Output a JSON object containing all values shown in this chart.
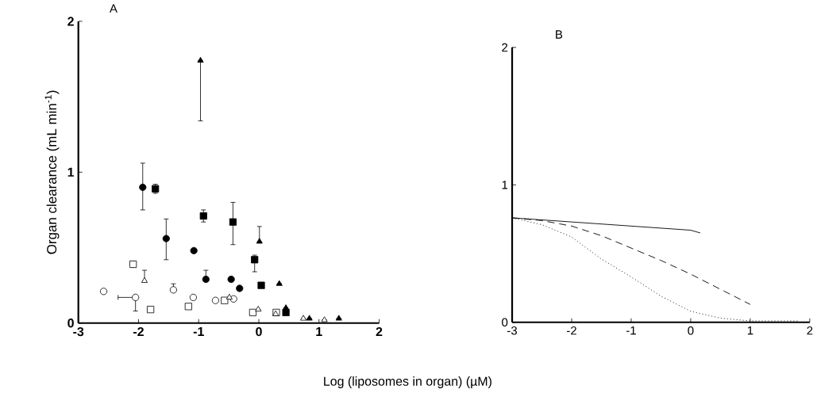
{
  "chart_data": [
    {
      "type": "scatter",
      "title": "A",
      "ylabel": "Organ clearance (mL min$^{-1}$)",
      "xlabel": "Log (liposomes in organ) (µM)",
      "xlim": [
        -3,
        2
      ],
      "ylim": [
        0,
        2
      ],
      "xticks": [
        -3,
        -2,
        -1,
        0,
        1,
        2
      ],
      "yticks": [
        0,
        1,
        2
      ],
      "series": [
        {
          "color": "#000000",
          "marker": "circle",
          "x": [
            -1.93,
            -1.54,
            -1.08,
            -0.88,
            -0.46,
            -0.32
          ],
          "values": [
            0.9,
            0.56,
            0.48,
            0.29,
            0.29,
            0.23
          ],
          "errors": [
            [
              0.75,
              1.06
            ],
            [
              0.42,
              0.69
            ],
            null,
            [
              0.29,
              0.35
            ],
            null,
            null
          ]
        },
        {
          "color": "#000000",
          "marker": "square",
          "x": [
            -1.72,
            -0.92,
            -0.43,
            -0.07,
            0.04,
            0.45
          ],
          "values": [
            0.89,
            0.71,
            0.67,
            0.42,
            0.25,
            0.07
          ],
          "errors": [
            0.03,
            0.04,
            [
              0.52,
              0.8
            ],
            [
              0.34,
              0.45
            ],
            null,
            null
          ]
        },
        {
          "color": "#000000",
          "marker": "triangle",
          "x": [
            -0.97,
            0.01,
            0.34,
            0.45,
            0.84,
            1.33
          ],
          "values": [
            1.74,
            0.54,
            0.26,
            0.1,
            0.03,
            0.03
          ],
          "errors": [
            [
              1.34,
              1.74
            ],
            [
              0.54,
              0.64
            ],
            null,
            null,
            null,
            null
          ]
        },
        {
          "color": "#ffffff",
          "marker": "circle",
          "x": [
            -2.58,
            -2.05,
            -1.42,
            -1.09,
            -0.72,
            -0.42
          ],
          "values": [
            0.21,
            0.17,
            0.22,
            0.17,
            0.15,
            0.16
          ],
          "errors": [
            null,
            [
              0.08,
              0.17
            ],
            [
              0.22,
              0.26
            ],
            null,
            null,
            null
          ],
          "xerrors": [
            null,
            [
              -2.34,
              -2.05
            ],
            null,
            null,
            null,
            null
          ]
        },
        {
          "color": "#ffffff",
          "marker": "square",
          "x": [
            -2.09,
            -1.8,
            -1.17,
            -0.57,
            -0.1,
            0.29
          ],
          "values": [
            0.39,
            0.09,
            0.11,
            0.15,
            0.07,
            0.07
          ],
          "errors": [
            0.02,
            null,
            null,
            null,
            null,
            null
          ]
        },
        {
          "color": "#ffffff",
          "marker": "triangle",
          "x": [
            -1.9,
            -0.49,
            -0.01,
            0.28,
            0.74,
            1.09
          ],
          "values": [
            0.28,
            0.17,
            0.09,
            0.06,
            0.03,
            0.02
          ],
          "errors": [
            [
              0.28,
              0.35
            ],
            null,
            null,
            null,
            null,
            null
          ]
        }
      ]
    },
    {
      "type": "line",
      "title": "B",
      "xlim": [
        -3,
        2
      ],
      "ylim": [
        0,
        2
      ],
      "xticks": [
        -3,
        -2,
        -1,
        0,
        1,
        2
      ],
      "yticks": [
        0,
        1,
        2
      ],
      "series": [
        {
          "color": "#000000",
          "line_style": "solid",
          "marker": "none",
          "x": [
            -3,
            -2,
            -1,
            0,
            0.16
          ],
          "values": [
            0.76,
            0.73,
            0.7,
            0.67,
            0.65
          ]
        },
        {
          "color": "#000000",
          "line_style": "dashed",
          "marker": "none",
          "x": [
            -3,
            -2.5,
            -2,
            -1.5,
            -1,
            -0.5,
            0,
            0.5,
            1
          ],
          "values": [
            0.76,
            0.74,
            0.7,
            0.63,
            0.54,
            0.45,
            0.35,
            0.24,
            0.13
          ]
        },
        {
          "color": "#000000",
          "line_style": "dotted",
          "marker": "none",
          "x": [
            -3,
            -2.5,
            -2,
            -1.5,
            -1,
            -0.5,
            0,
            0.5,
            1,
            1.8
          ],
          "values": [
            0.76,
            0.71,
            0.62,
            0.46,
            0.33,
            0.19,
            0.08,
            0.03,
            0.01,
            0.01
          ]
        }
      ]
    }
  ]
}
